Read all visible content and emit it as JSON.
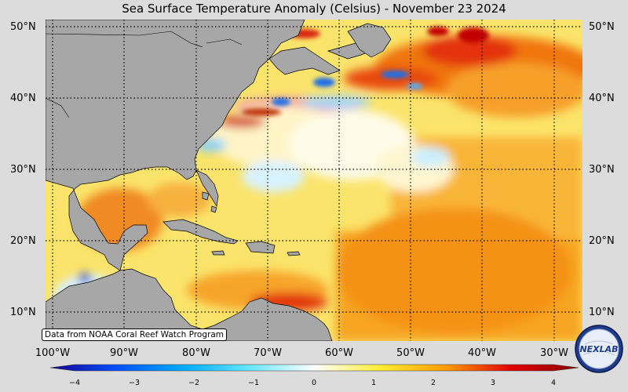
{
  "title": "Sea Surface Temperature Anomaly (Celsius) - November 23 2024",
  "credit": "Data from NOAA Coral Reef Watch Program",
  "lat_labels": [
    "50°N",
    "40°N",
    "30°N",
    "20°N",
    "10°N"
  ],
  "lon_labels": [
    "100°W",
    "90°W",
    "80°W",
    "70°W",
    "60°W",
    "50°W",
    "40°W",
    "30°W"
  ],
  "colorbar": {
    "ticks": [
      "−4",
      "−3",
      "−2",
      "−1",
      "0",
      "1",
      "2",
      "3",
      "4"
    ],
    "range": [
      -4,
      4
    ],
    "colors": [
      "#1a0090",
      "#0050ff",
      "#00aaff",
      "#66e6ff",
      "#ffffff",
      "#ffee33",
      "#ff9a00",
      "#e00000",
      "#8b0000"
    ]
  },
  "colors": {
    "land": "#a6a6a6",
    "background": "#dcdcdc",
    "ocean_base": "#fce96a"
  },
  "logo_text": "NEXLAB"
}
